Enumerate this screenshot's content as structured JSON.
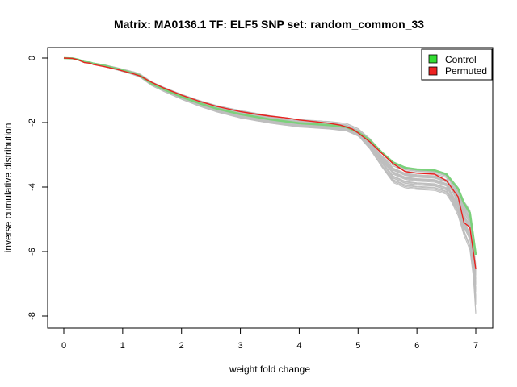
{
  "chart_data": {
    "type": "line",
    "title": "Matrix: MA0136.1 TF: ELF5 SNP set: random_common_33",
    "xlabel": "weight fold change",
    "ylabel": "inverse cumulative distribution",
    "xlim": [
      0,
      7
    ],
    "ylim": [
      -8,
      0
    ],
    "x_ticks": [
      0,
      1,
      2,
      3,
      4,
      5,
      6,
      7
    ],
    "y_ticks": [
      0,
      -2,
      -4,
      -6,
      -8
    ],
    "grid": false,
    "legend": {
      "placement": "top-right",
      "entries": [
        "Control",
        "Permuted"
      ]
    },
    "series": [
      {
        "name": "Control",
        "color": "#7bd17b",
        "x": [
          0,
          0.15,
          0.25,
          0.35,
          0.45,
          0.5,
          0.7,
          0.9,
          1.0,
          1.2,
          1.3,
          1.5,
          1.7,
          2.0,
          2.3,
          2.6,
          3.0,
          3.5,
          4.0,
          4.5,
          4.8,
          5.0,
          5.2,
          5.4,
          5.6,
          5.8,
          6.0,
          6.3,
          6.5,
          6.7,
          6.8,
          6.9,
          7.0
        ],
        "y": [
          0,
          -0.01,
          -0.05,
          -0.12,
          -0.14,
          -0.17,
          -0.24,
          -0.33,
          -0.38,
          -0.48,
          -0.55,
          -0.8,
          -0.97,
          -1.2,
          -1.4,
          -1.57,
          -1.74,
          -1.9,
          -2.02,
          -2.08,
          -2.14,
          -2.3,
          -2.55,
          -2.92,
          -3.24,
          -3.4,
          -3.45,
          -3.48,
          -3.6,
          -4.05,
          -4.5,
          -4.8,
          -6.1
        ]
      },
      {
        "name": "Permuted",
        "color": "#e8211e",
        "x": [
          0,
          0.15,
          0.25,
          0.35,
          0.45,
          0.5,
          0.7,
          0.9,
          1.0,
          1.2,
          1.3,
          1.5,
          1.7,
          2.0,
          2.3,
          2.6,
          3.0,
          3.3,
          3.5,
          3.8,
          4.0,
          4.3,
          4.5,
          4.7,
          4.9,
          5.0,
          5.2,
          5.4,
          5.6,
          5.8,
          6.0,
          6.3,
          6.5,
          6.7,
          6.8,
          6.9,
          7.0
        ],
        "y": [
          0,
          -0.01,
          -0.06,
          -0.14,
          -0.16,
          -0.2,
          -0.27,
          -0.35,
          -0.4,
          -0.5,
          -0.56,
          -0.76,
          -0.93,
          -1.15,
          -1.34,
          -1.5,
          -1.66,
          -1.75,
          -1.8,
          -1.86,
          -1.92,
          -1.98,
          -2.02,
          -2.08,
          -2.2,
          -2.32,
          -2.6,
          -2.95,
          -3.28,
          -3.52,
          -3.57,
          -3.6,
          -3.8,
          -4.3,
          -5.1,
          -5.25,
          -6.55
        ]
      }
    ],
    "background_series_count": 40,
    "background_color": "#bebebe"
  }
}
